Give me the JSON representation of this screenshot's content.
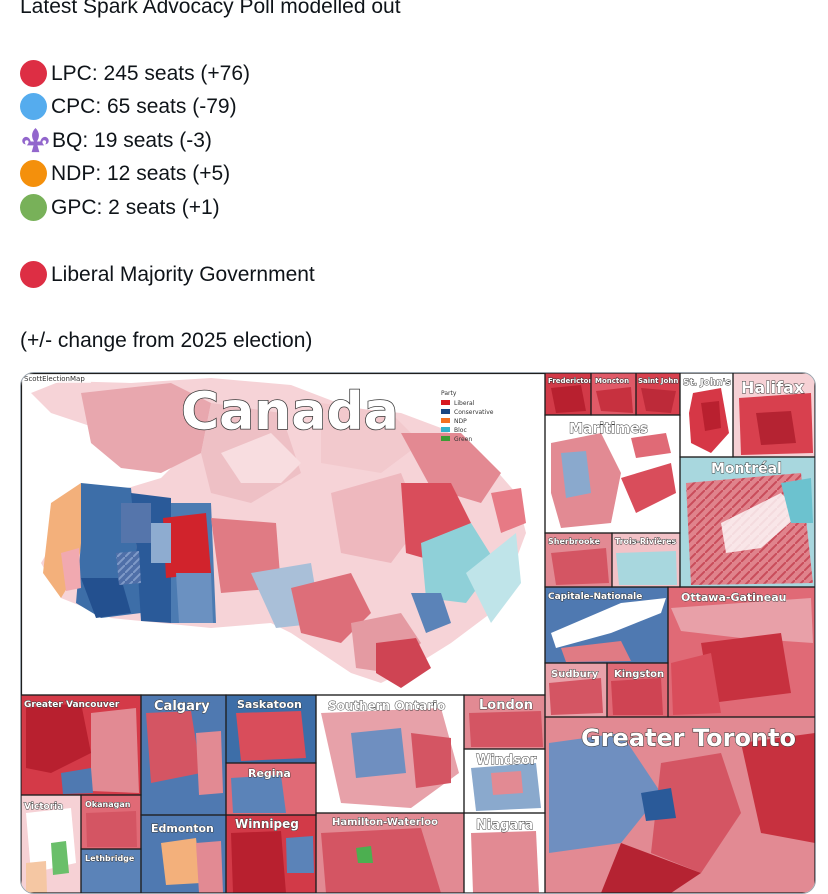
{
  "post": {
    "headline": "Latest Spark Advocacy Poll modelled out",
    "results": [
      {
        "text": "LPC: 245 seats (+76)",
        "icon": "red-circle",
        "color": "#dd2e44"
      },
      {
        "text": "CPC: 65 seats (-79)",
        "icon": "blue-circle",
        "color": "#55acee"
      },
      {
        "text": "BQ: 19 seats (-3)",
        "icon": "fleur-de-lis",
        "color": "#9266cc"
      },
      {
        "text": "NDP: 12 seats (+5)",
        "icon": "orange-circle",
        "color": "#f4900c"
      },
      {
        "text": "GPC: 2 seats (+1)",
        "icon": "green-circle",
        "color": "#78b159"
      }
    ],
    "outcome": {
      "text": "Liberal Majority Government",
      "icon": "red-circle",
      "color": "#dd2e44"
    },
    "note": "(+/- change from 2025 election)"
  },
  "map": {
    "watermark": "ScottElectionMap",
    "title": "Canada",
    "legend": {
      "title": "Party",
      "items": [
        {
          "label": "Liberal",
          "color": "#d71920"
        },
        {
          "label": "Conservative",
          "color": "#1a4782"
        },
        {
          "label": "NDP",
          "color": "#f37021"
        },
        {
          "label": "Bloc",
          "color": "#33b2cc"
        },
        {
          "label": "Green",
          "color": "#3d9b35"
        }
      ]
    },
    "panels": {
      "fredericton": "Fredericton",
      "moncton": "Moncton",
      "saint_john": "Saint John",
      "st_johns": "St. John's",
      "halifax": "Halifax",
      "maritimes": "Maritimes",
      "montreal": "Montréal",
      "sherbrooke": "Sherbrooke",
      "trois_rivieres": "Trois-Rivières",
      "capitale_nationale": "Capitale-Nationale",
      "ottawa_gatineau": "Ottawa-Gatineau",
      "sudbury": "Sudbury",
      "kingston": "Kingston",
      "greater_vancouver": "Greater Vancouver",
      "calgary": "Calgary",
      "saskatoon": "Saskatoon",
      "regina": "Regina",
      "southern_ontario": "Southern Ontario",
      "london": "London",
      "windsor": "Windsor",
      "greater_toronto": "Greater Toronto",
      "victoria": "Victoria",
      "okanagan": "Okanagan",
      "lethbridge": "Lethbridge",
      "edmonton": "Edmonton",
      "winnipeg": "Winnipeg",
      "hamilton_waterloo": "Hamilton-Waterloo",
      "niagara": "Niagara"
    }
  }
}
